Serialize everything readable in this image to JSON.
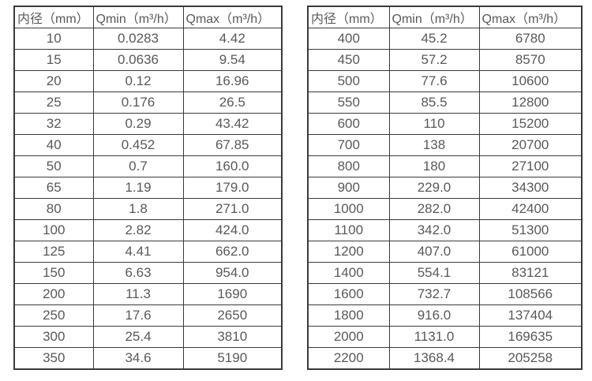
{
  "colors": {
    "border": "#3a3a3a",
    "text": "#595959",
    "background": "#ffffff"
  },
  "tables": [
    {
      "headers": [
        "内径（mm）",
        "Qmin（m³/h）",
        "Qmax（m³/h）"
      ],
      "rows": [
        [
          "10",
          "0.0283",
          "4.42"
        ],
        [
          "15",
          "0.0636",
          "9.54"
        ],
        [
          "20",
          "0.12",
          "16.96"
        ],
        [
          "25",
          "0.176",
          "26.5"
        ],
        [
          "32",
          "0.29",
          "43.42"
        ],
        [
          "40",
          "0.452",
          "67.85"
        ],
        [
          "50",
          "0.7",
          "160.0"
        ],
        [
          "65",
          "1.19",
          "179.0"
        ],
        [
          "80",
          "1.8",
          "271.0"
        ],
        [
          "100",
          "2.82",
          "424.0"
        ],
        [
          "125",
          "4.41",
          "662.0"
        ],
        [
          "150",
          "6.63",
          "954.0"
        ],
        [
          "200",
          "11.3",
          "1690"
        ],
        [
          "250",
          "17.6",
          "2650"
        ],
        [
          "300",
          "25.4",
          "3810"
        ],
        [
          "350",
          "34.6",
          "5190"
        ]
      ]
    },
    {
      "headers": [
        "内径（mm）",
        "Qmin（m³/h）",
        "Qmax（m³/h）"
      ],
      "rows": [
        [
          "400",
          "45.2",
          "6780"
        ],
        [
          "450",
          "57.2",
          "8570"
        ],
        [
          "500",
          "77.6",
          "10600"
        ],
        [
          "550",
          "85.5",
          "12800"
        ],
        [
          "600",
          "110",
          "15200"
        ],
        [
          "700",
          "138",
          "20700"
        ],
        [
          "800",
          "180",
          "27100"
        ],
        [
          "900",
          "229.0",
          "34300"
        ],
        [
          "1000",
          "282.0",
          "42400"
        ],
        [
          "1100",
          "342.0",
          "51300"
        ],
        [
          "1200",
          "407.0",
          "61000"
        ],
        [
          "1400",
          "554.1",
          "83121"
        ],
        [
          "1600",
          "732.7",
          "108566"
        ],
        [
          "1800",
          "916.0",
          "137404"
        ],
        [
          "2000",
          "1131.0",
          "169635"
        ],
        [
          "2200",
          "1368.4",
          "205258"
        ]
      ]
    }
  ]
}
